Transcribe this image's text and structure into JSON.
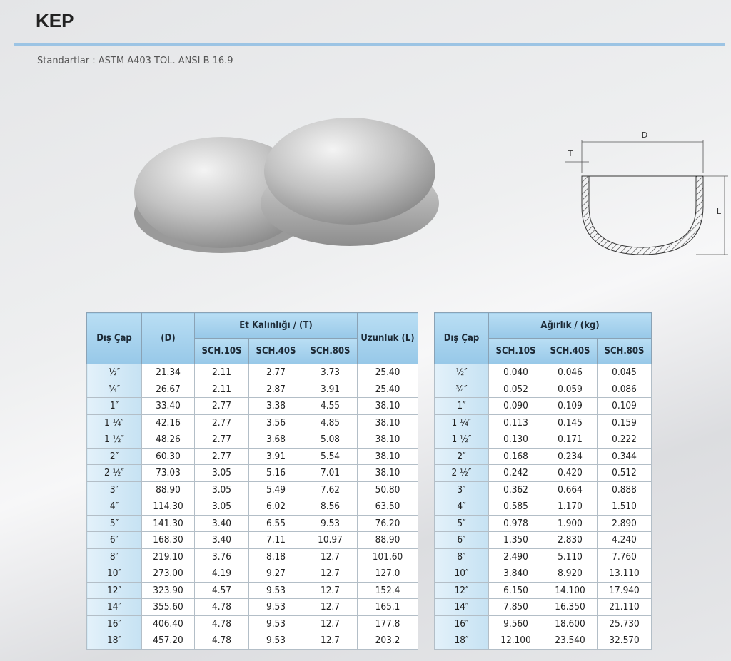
{
  "header": {
    "title": "KEP",
    "standards": "Standartlar : ASTM A403 TOL. ANSI B 16.9"
  },
  "diagram": {
    "d_label": "D",
    "t_label": "T",
    "l_label": "L"
  },
  "dimensions_table": {
    "headers": {
      "outer_diameter": "Dış Çap",
      "d": "(D)",
      "thickness": "Et Kalınlığı / (T)",
      "schedules": [
        "SCH.10S",
        "SCH.40S",
        "SCH.80S"
      ],
      "length": "Uzunluk (L)"
    },
    "rows": [
      [
        "½″",
        "21.34",
        "2.11",
        "2.77",
        "3.73",
        "25.40"
      ],
      [
        "¾″",
        "26.67",
        "2.11",
        "2.87",
        "3.91",
        "25.40"
      ],
      [
        "1″",
        "33.40",
        "2.77",
        "3.38",
        "4.55",
        "38.10"
      ],
      [
        "1 ¼″",
        "42.16",
        "2.77",
        "3.56",
        "4.85",
        "38.10"
      ],
      [
        "1 ½″",
        "48.26",
        "2.77",
        "3.68",
        "5.08",
        "38.10"
      ],
      [
        "2″",
        "60.30",
        "2.77",
        "3.91",
        "5.54",
        "38.10"
      ],
      [
        "2 ½″",
        "73.03",
        "3.05",
        "5.16",
        "7.01",
        "38.10"
      ],
      [
        "3″",
        "88.90",
        "3.05",
        "5.49",
        "7.62",
        "50.80"
      ],
      [
        "4″",
        "114.30",
        "3.05",
        "6.02",
        "8.56",
        "63.50"
      ],
      [
        "5″",
        "141.30",
        "3.40",
        "6.55",
        "9.53",
        "76.20"
      ],
      [
        "6″",
        "168.30",
        "3.40",
        "7.11",
        "10.97",
        "88.90"
      ],
      [
        "8″",
        "219.10",
        "3.76",
        "8.18",
        "12.7",
        "101.60"
      ],
      [
        "10″",
        "273.00",
        "4.19",
        "9.27",
        "12.7",
        "127.0"
      ],
      [
        "12″",
        "323.90",
        "4.57",
        "9.53",
        "12.7",
        "152.4"
      ],
      [
        "14″",
        "355.60",
        "4.78",
        "9.53",
        "12.7",
        "165.1"
      ],
      [
        "16″",
        "406.40",
        "4.78",
        "9.53",
        "12.7",
        "177.8"
      ],
      [
        "18″",
        "457.20",
        "4.78",
        "9.53",
        "12.7",
        "203.2"
      ]
    ]
  },
  "weight_table": {
    "headers": {
      "outer_diameter": "Dış Çap",
      "weight": "Ağırlık / (kg)",
      "schedules": [
        "SCH.10S",
        "SCH.40S",
        "SCH.80S"
      ]
    },
    "rows": [
      [
        "½″",
        "0.040",
        "0.046",
        "0.045"
      ],
      [
        "¾″",
        "0.052",
        "0.059",
        "0.086"
      ],
      [
        "1″",
        "0.090",
        "0.109",
        "0.109"
      ],
      [
        "1 ¼″",
        "0.113",
        "0.145",
        "0.159"
      ],
      [
        "1 ½″",
        "0.130",
        "0.171",
        "0.222"
      ],
      [
        "2″",
        "0.168",
        "0.234",
        "0.344"
      ],
      [
        "2 ½″",
        "0.242",
        "0.420",
        "0.512"
      ],
      [
        "3″",
        "0.362",
        "0.664",
        "0.888"
      ],
      [
        "4″",
        "0.585",
        "1.170",
        "1.510"
      ],
      [
        "5″",
        "0.978",
        "1.900",
        "2.890"
      ],
      [
        "6″",
        "1.350",
        "2.830",
        "4.240"
      ],
      [
        "8″",
        "2.490",
        "5.110",
        "7.760"
      ],
      [
        "10″",
        "3.840",
        "8.920",
        "13.110"
      ],
      [
        "12″",
        "6.150",
        "14.100",
        "17.940"
      ],
      [
        "14″",
        "7.850",
        "16.350",
        "21.110"
      ],
      [
        "16″",
        "9.560",
        "18.600",
        "25.730"
      ],
      [
        "18″",
        "12.100",
        "23.540",
        "32.570"
      ]
    ]
  }
}
